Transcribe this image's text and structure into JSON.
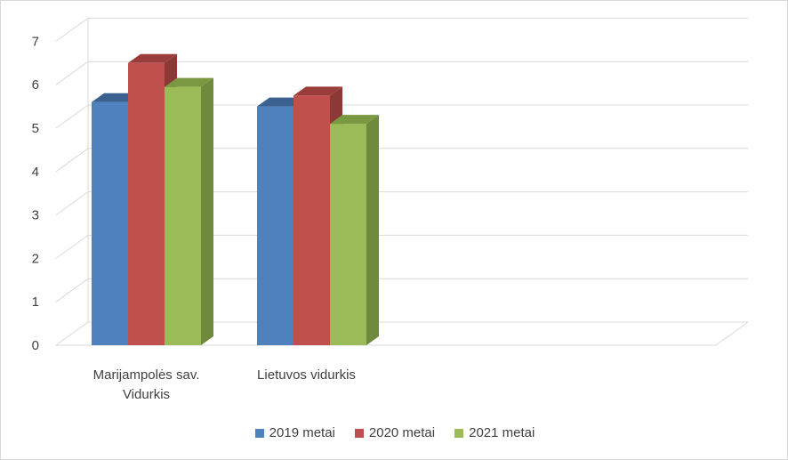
{
  "chart_data": {
    "type": "bar",
    "categories": [
      "Marijampolės sav. Vidurkis",
      "Lietuvos vidurkis"
    ],
    "category_lines": [
      [
        "Marijampolės sav.",
        "Vidurkis"
      ],
      [
        "Lietuvos vidurkis"
      ]
    ],
    "series": [
      {
        "name": "2019 metai",
        "values": [
          5.6,
          5.5
        ],
        "color": "#4f81bd",
        "side_color": "#385d8a",
        "top_color": "#3a6190"
      },
      {
        "name": "2020 metai",
        "values": [
          6.5,
          5.75
        ],
        "color": "#c0504d",
        "side_color": "#8c3836",
        "top_color": "#9a3d3a"
      },
      {
        "name": "2021 metai",
        "values": [
          5.95,
          5.1
        ],
        "color": "#9bbb59",
        "side_color": "#6f8a3c",
        "top_color": "#7a9741"
      }
    ],
    "y_ticks": [
      "0",
      "1",
      "2",
      "3",
      "4",
      "5",
      "6",
      "7"
    ],
    "ylim": [
      0,
      7
    ],
    "grid": true,
    "legend_position": "bottom",
    "three_d": true
  }
}
